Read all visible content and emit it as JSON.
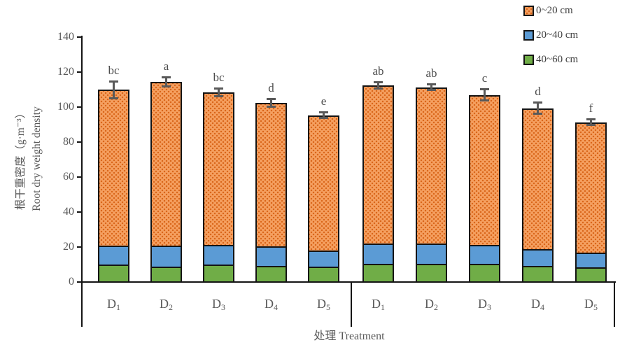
{
  "chart_data": {
    "type": "bar",
    "stacked": true,
    "title": "",
    "ylabel_line1": "根干重密度（g·m⁻³）",
    "ylabel_line2": "Root dry weight density",
    "xlabel": "处理  Treatment",
    "ylim": [
      0,
      140
    ],
    "yticks": [
      0,
      20,
      40,
      60,
      80,
      100,
      120,
      140
    ],
    "grid": false,
    "legend_position": "top-right",
    "series_order_bottom_to_top": [
      "40~60 cm",
      "20~40 cm",
      "0~20 cm"
    ],
    "legend": [
      {
        "label": "0~20 cm",
        "color_key": "depth_0_20"
      },
      {
        "label": "20~40 cm",
        "color_key": "depth_20_40"
      },
      {
        "label": "40~60 cm",
        "color_key": "depth_40_60"
      }
    ],
    "colors": {
      "depth_0_20_base": "#F5A061",
      "depth_0_20_dots": "#D9661A",
      "depth_20_40": "#5B9BD5",
      "depth_40_60": "#70AD47",
      "bar_border": "#141414",
      "error_bar": "#595959",
      "axis_text": "#595959"
    },
    "groups": [
      {
        "name": "left-group",
        "bars": [
          {
            "category_base": "D",
            "category_sub": "1",
            "values": {
              "40~60 cm": 9.5,
              "20~40 cm": 11.0,
              "0~20 cm": 89.0
            },
            "total": 109.5,
            "error": 4.5,
            "sig_letter": "bc"
          },
          {
            "category_base": "D",
            "category_sub": "2",
            "values": {
              "40~60 cm": 8.5,
              "20~40 cm": 12.0,
              "0~20 cm": 93.5
            },
            "total": 114.0,
            "error": 2.5,
            "sig_letter": "a"
          },
          {
            "category_base": "D",
            "category_sub": "3",
            "values": {
              "40~60 cm": 9.5,
              "20~40 cm": 11.5,
              "0~20 cm": 87.0
            },
            "total": 108.0,
            "error": 2.0,
            "sig_letter": "bc"
          },
          {
            "category_base": "D",
            "category_sub": "4",
            "values": {
              "40~60 cm": 9.0,
              "20~40 cm": 11.0,
              "0~20 cm": 82.0
            },
            "total": 102.0,
            "error": 2.0,
            "sig_letter": "d"
          },
          {
            "category_base": "D",
            "category_sub": "5",
            "values": {
              "40~60 cm": 8.5,
              "20~40 cm": 9.0,
              "0~20 cm": 77.5
            },
            "total": 95.0,
            "error": 1.5,
            "sig_letter": "e"
          }
        ]
      },
      {
        "name": "right-group",
        "bars": [
          {
            "category_base": "D",
            "category_sub": "1",
            "values": {
              "40~60 cm": 10.0,
              "20~40 cm": 11.5,
              "0~20 cm": 90.5
            },
            "total": 112.0,
            "error": 1.5,
            "sig_letter": "ab"
          },
          {
            "category_base": "D",
            "category_sub": "2",
            "values": {
              "40~60 cm": 10.0,
              "20~40 cm": 11.5,
              "0~20 cm": 89.5
            },
            "total": 111.0,
            "error": 1.5,
            "sig_letter": "ab"
          },
          {
            "category_base": "D",
            "category_sub": "3",
            "values": {
              "40~60 cm": 10.0,
              "20~40 cm": 11.0,
              "0~20 cm": 85.5
            },
            "total": 106.5,
            "error": 3.0,
            "sig_letter": "c"
          },
          {
            "category_base": "D",
            "category_sub": "4",
            "values": {
              "40~60 cm": 9.0,
              "20~40 cm": 9.5,
              "0~20 cm": 80.5
            },
            "total": 99.0,
            "error": 3.0,
            "sig_letter": "d"
          },
          {
            "category_base": "D",
            "category_sub": "5",
            "values": {
              "40~60 cm": 8.0,
              "20~40 cm": 8.5,
              "0~20 cm": 74.5
            },
            "total": 91.0,
            "error": 1.5,
            "sig_letter": "f"
          }
        ]
      }
    ]
  }
}
